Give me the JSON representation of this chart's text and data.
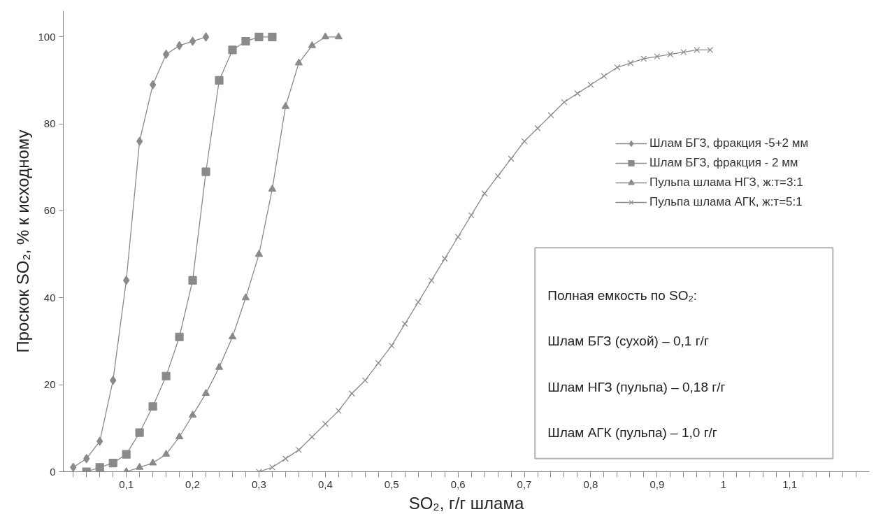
{
  "chart_data": {
    "type": "line",
    "xlabel": "SO₂, г/г шлама",
    "ylabel": "Проскок SO₂, % к исходному",
    "xlim": [
      0.005,
      1.22
    ],
    "xticks": [
      {
        "value": 0.1,
        "label": "0,1"
      },
      {
        "value": 0.2,
        "label": "0,2"
      },
      {
        "value": 0.3,
        "label": "0,3"
      },
      {
        "value": 0.4,
        "label": "0,4"
      },
      {
        "value": 0.5,
        "label": "0,5"
      },
      {
        "value": 0.6,
        "label": "0,6"
      },
      {
        "value": 0.7,
        "label": "0,7"
      },
      {
        "value": 0.8,
        "label": "0,8"
      },
      {
        "value": 0.9,
        "label": "0,9"
      },
      {
        "value": 1,
        "label": "1"
      },
      {
        "value": 1.1,
        "label": "1,1"
      }
    ],
    "ylim": [
      0,
      106
    ],
    "yticks": [
      0,
      20,
      40,
      60,
      80,
      100
    ],
    "grid": false,
    "legend": "top right",
    "series": [
      {
        "name": "Шлам БГЗ, фракция -5+2 мм",
        "color": "#8a8a8a",
        "marker": "diamond",
        "x": [
          0.02,
          0.04,
          0.06,
          0.08,
          0.1,
          0.12,
          0.14,
          0.16,
          0.18,
          0.2,
          0.22
        ],
        "values": [
          1,
          3,
          7,
          21,
          44,
          76,
          89,
          96,
          98,
          99,
          100
        ]
      },
      {
        "name": "Шлам БГЗ, фракция - 2 мм",
        "color": "#8a8a8a",
        "marker": "square",
        "x": [
          0.04,
          0.06,
          0.08,
          0.1,
          0.12,
          0.14,
          0.16,
          0.18,
          0.2,
          0.22,
          0.24,
          0.26,
          0.28,
          0.3,
          0.32
        ],
        "values": [
          0,
          1,
          2,
          4,
          9,
          15,
          22,
          31,
          44,
          69,
          90,
          97,
          99,
          100,
          100
        ]
      },
      {
        "name": "Пульпа шлама НГЗ, ж:т=3:1",
        "color": "#8a8a8a",
        "marker": "triangle",
        "x": [
          0.1,
          0.12,
          0.14,
          0.16,
          0.18,
          0.2,
          0.22,
          0.24,
          0.26,
          0.28,
          0.3,
          0.32,
          0.34,
          0.36,
          0.38,
          0.4,
          0.42
        ],
        "values": [
          0,
          1,
          2,
          4,
          8,
          13,
          18,
          24,
          31,
          40,
          50,
          65,
          84,
          94,
          98,
          100,
          100
        ]
      },
      {
        "name": "Пульпа шлама АГК, ж:т=5:1",
        "color": "#8a8a8a",
        "marker": "cross",
        "x": [
          0.3,
          0.32,
          0.34,
          0.36,
          0.38,
          0.4,
          0.42,
          0.44,
          0.46,
          0.48,
          0.5,
          0.52,
          0.54,
          0.56,
          0.58,
          0.6,
          0.62,
          0.64,
          0.66,
          0.68,
          0.7,
          0.72,
          0.74,
          0.76,
          0.78,
          0.8,
          0.82,
          0.84,
          0.86,
          0.88,
          0.9,
          0.92,
          0.94,
          0.96,
          0.98
        ],
        "values": [
          0,
          1,
          3,
          5,
          8,
          11,
          14,
          18,
          21,
          25,
          29,
          34,
          39,
          44,
          49,
          54,
          59,
          64,
          68,
          72,
          76,
          79,
          82,
          85,
          87,
          89,
          91,
          93,
          94,
          95,
          95.5,
          96,
          96.5,
          97,
          97
        ]
      }
    ],
    "annotations": [
      "Полная емкость по SO₂:",
      "Шлам БГЗ (сухой) – 0,1 г/г",
      "Шлам НГЗ (пульпа) – 0,18 г/г",
      "Шлам АГК (пульпа) – 1,0 г/г"
    ]
  }
}
